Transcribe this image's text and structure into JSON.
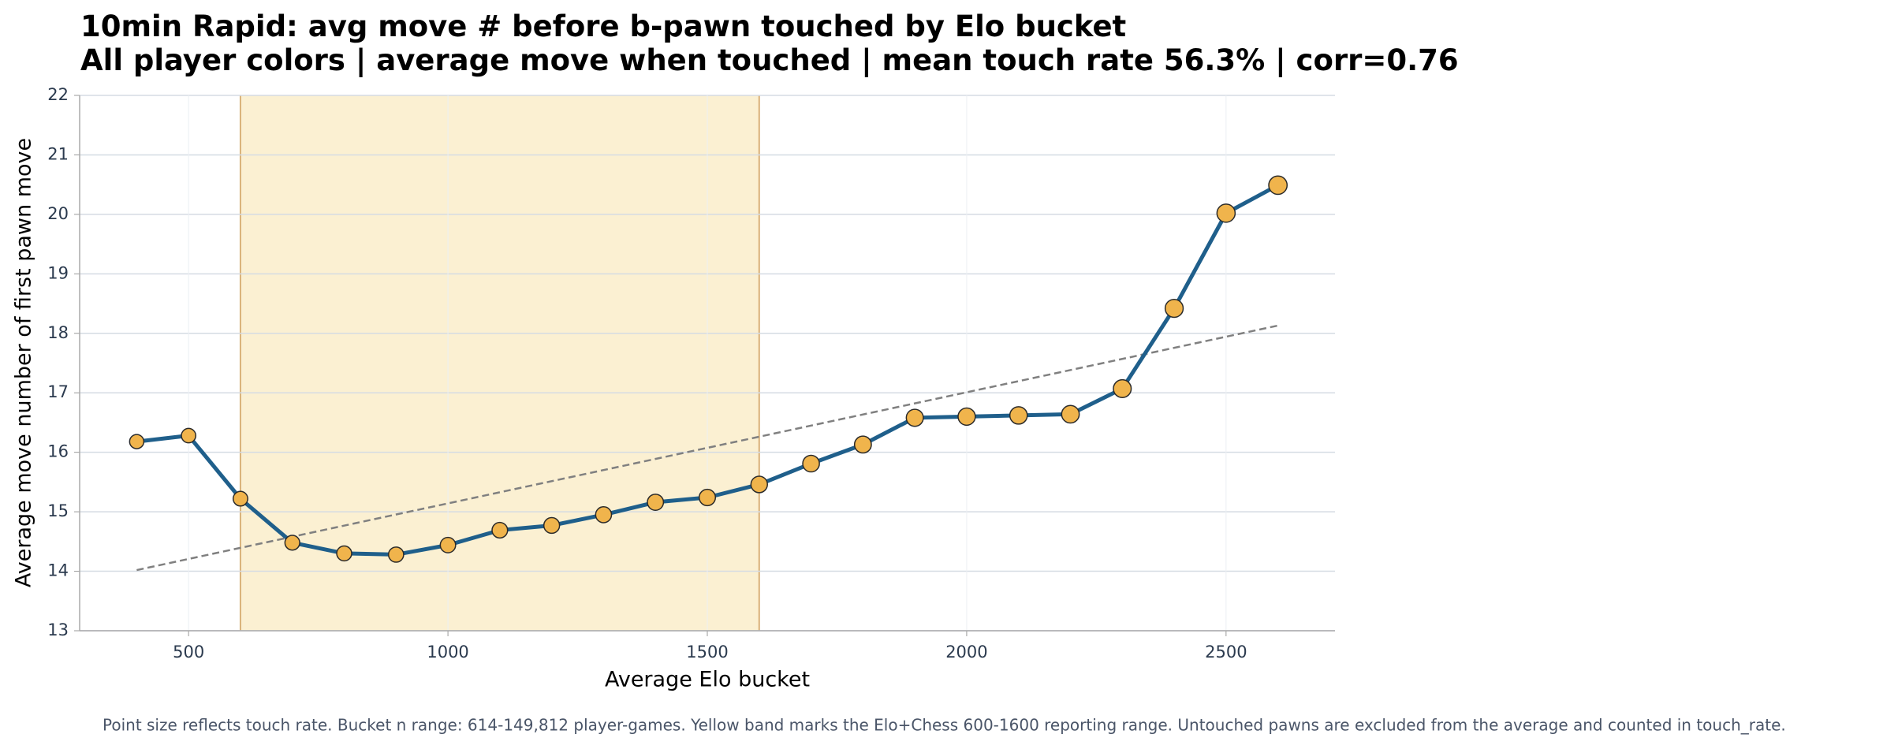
{
  "chart_data": {
    "type": "line",
    "title": "10min Rapid: avg move # before b-pawn touched by Elo bucket",
    "subtitle": "All player colors | average move when touched | mean touch rate 56.3% | corr=0.76",
    "x_label": "Average Elo bucket",
    "y_label": "Average move number of first pawn move",
    "footnote": "Point size reflects touch rate. Bucket n range: 614-149,812 player-games. Yellow band marks the Elo+Chess 600-1600 reporting range. Untouched pawns are excluded from the average and counted in touch_rate.",
    "x": [
      400,
      500,
      600,
      700,
      800,
      900,
      1000,
      1100,
      1200,
      1300,
      1400,
      1500,
      1600,
      1700,
      1800,
      1900,
      2000,
      2100,
      2200,
      2300,
      2400,
      2500,
      2600
    ],
    "series": [
      {
        "color": "#1f5f8b",
        "marker_color": "#f0b44c",
        "values": [
          16.18,
          16.28,
          15.22,
          14.48,
          14.3,
          14.28,
          14.44,
          14.69,
          14.77,
          14.95,
          15.16,
          15.24,
          15.46,
          15.81,
          16.13,
          16.58,
          16.6,
          16.62,
          16.64,
          17.07,
          18.42,
          20.02,
          20.49
        ]
      }
    ],
    "trend": {
      "color": "#808080",
      "x": [
        400,
        2600
      ],
      "values": [
        14.02,
        18.13
      ]
    },
    "band": {
      "color": "#fbf0d2",
      "edge_color": "#d9b27a",
      "x": [
        600,
        1600
      ]
    },
    "xlim": [
      290,
      2710
    ],
    "ylim": [
      13,
      22
    ],
    "xticks": [
      500,
      1000,
      1500,
      2000,
      2500
    ],
    "yticks": [
      13,
      14,
      15,
      16,
      17,
      18,
      19,
      20,
      21,
      22
    ],
    "grid": true
  }
}
